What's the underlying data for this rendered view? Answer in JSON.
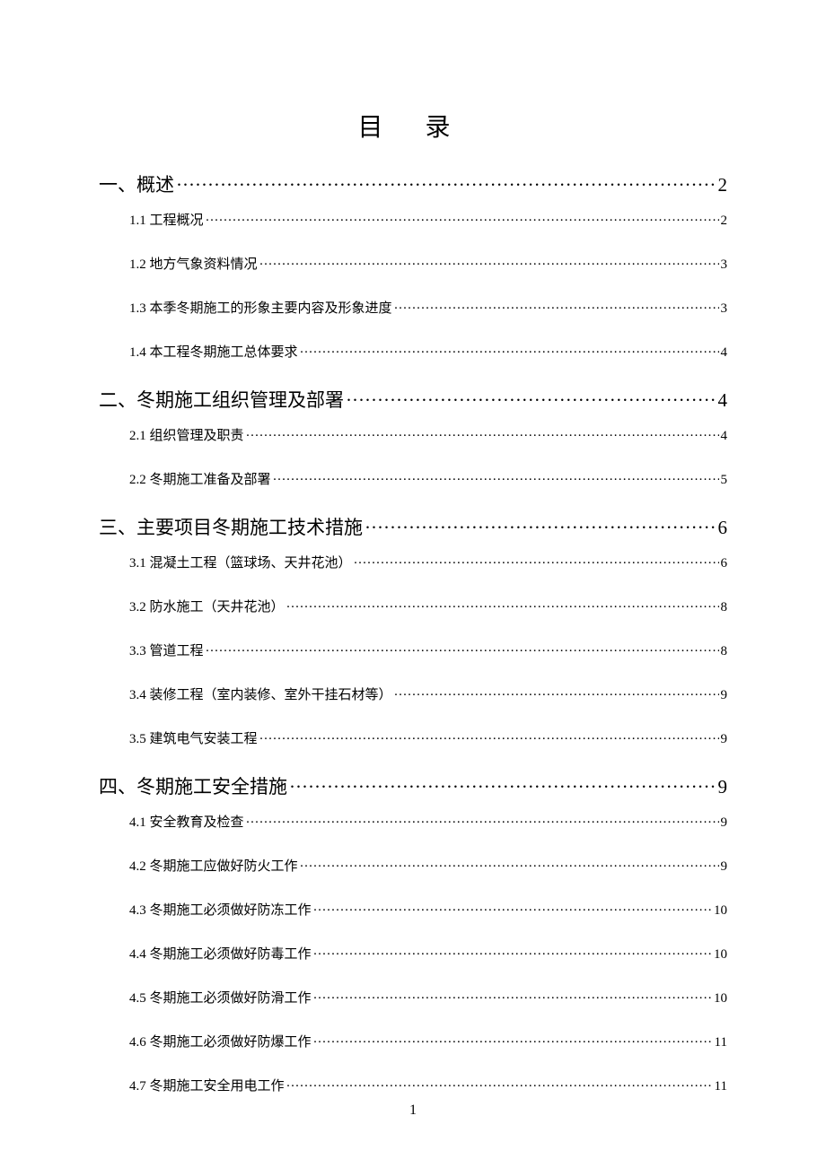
{
  "title": "目 录",
  "page_number": "1",
  "colors": {
    "text": "#000000",
    "background": "#ffffff"
  },
  "typography": {
    "title_fontsize": 28,
    "section_fontsize": 21,
    "subsection_fontsize": 15,
    "font_family": "SimSun"
  },
  "sections": [
    {
      "label": "一、概述",
      "page": "2",
      "subs": [
        {
          "label": "1.1 工程概况",
          "page": "2"
        },
        {
          "label": "1.2 地方气象资料情况",
          "page": "3"
        },
        {
          "label": "1.3 本季冬期施工的形象主要内容及形象进度",
          "page": "3"
        },
        {
          "label": "1.4 本工程冬期施工总体要求",
          "page": "4"
        }
      ]
    },
    {
      "label": "二、冬期施工组织管理及部署",
      "page": "4",
      "subs": [
        {
          "label": "2.1 组织管理及职责",
          "page": "4"
        },
        {
          "label": "2.2 冬期施工准备及部署",
          "page": "5"
        }
      ]
    },
    {
      "label": "三、主要项目冬期施工技术措施",
      "page": "6",
      "subs": [
        {
          "label": "3.1 混凝土工程（篮球场、天井花池）",
          "page": "6"
        },
        {
          "label": "3.2 防水施工（天井花池）",
          "page": "8"
        },
        {
          "label": "3.3 管道工程",
          "page": "8"
        },
        {
          "label": "3.4 装修工程（室内装修、室外干挂石材等）",
          "page": "9"
        },
        {
          "label": "3.5 建筑电气安装工程",
          "page": "9"
        }
      ]
    },
    {
      "label": "四、冬期施工安全措施",
      "page": "9",
      "subs": [
        {
          "label": "4.1 安全教育及检查",
          "page": "9"
        },
        {
          "label": "4.2 冬期施工应做好防火工作",
          "page": "9"
        },
        {
          "label": "4.3 冬期施工必须做好防冻工作",
          "page": "10"
        },
        {
          "label": "4.4 冬期施工必须做好防毒工作",
          "page": "10"
        },
        {
          "label": "4.5 冬期施工必须做好防滑工作",
          "page": "10"
        },
        {
          "label": "4.6 冬期施工必须做好防爆工作",
          "page": "11"
        },
        {
          "label": "4.7 冬期施工安全用电工作",
          "page": "11"
        }
      ]
    }
  ]
}
